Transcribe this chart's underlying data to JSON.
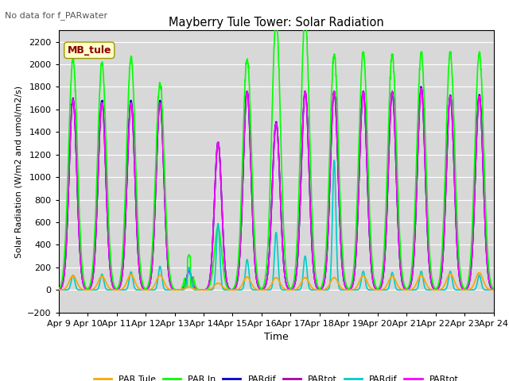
{
  "title": "Mayberry Tule Tower: Solar Radiation",
  "subtitle": "No data for f_PARwater",
  "xlabel": "Time",
  "ylabel": "Solar Radiation (W/m2 and umol/m2/s)",
  "ylim": [
    -200,
    2300
  ],
  "yticks": [
    -200,
    0,
    200,
    400,
    600,
    800,
    1000,
    1200,
    1400,
    1600,
    1800,
    2000,
    2200
  ],
  "x_labels": [
    "Apr 9",
    "Apr 10",
    "Apr 11",
    "Apr 12",
    "Apr 13",
    "Apr 14",
    "Apr 15",
    "Apr 16",
    "Apr 17",
    "Apr 18",
    "Apr 19",
    "Apr 20",
    "Apr 21",
    "Apr 22",
    "Apr 23",
    "Apr 24"
  ],
  "bg_color": "#d8d8d8",
  "legend_label": "MB_tule",
  "legend_bg": "#ffffcc",
  "legend_text_color": "#8b0000",
  "series": [
    {
      "label": "PAR Tule",
      "color": "#ffa500",
      "lw": 1.2
    },
    {
      "label": "PAR In",
      "color": "#00ff00",
      "lw": 1.2
    },
    {
      "label": "PARdif",
      "color": "#0000cc",
      "lw": 1.2
    },
    {
      "label": "PARtot",
      "color": "#aa00aa",
      "lw": 1.2
    },
    {
      "label": "PARdif",
      "color": "#00cccc",
      "lw": 1.2
    },
    {
      "label": "PARtot",
      "color": "#ff00ff",
      "lw": 1.2
    }
  ],
  "num_days": 15,
  "pts_per_day": 144,
  "green_peaks": [
    2060,
    2020,
    2070,
    1840,
    310,
    560,
    2050,
    2420,
    2430,
    2090,
    2110,
    2090,
    2110,
    2110,
    2110
  ],
  "orange_peaks": [
    125,
    120,
    135,
    130,
    25,
    60,
    115,
    110,
    110,
    110,
    125,
    120,
    130,
    145,
    150
  ],
  "cyan_peaks": [
    130,
    140,
    160,
    210,
    200,
    590,
    270,
    510,
    300,
    1150,
    165,
    155,
    165,
    165,
    130
  ],
  "magenta_peaks": [
    1690,
    1660,
    1660,
    1660,
    160,
    1310,
    1760,
    1480,
    1760,
    1760,
    1760,
    1760,
    1790,
    1720,
    1720
  ],
  "purple_peaks": [
    1690,
    1660,
    1660,
    1660,
    160,
    1310,
    1760,
    1480,
    1760,
    1760,
    1760,
    1760,
    1790,
    1720,
    1720
  ],
  "blue_peaks": [
    1700,
    1680,
    1680,
    1680,
    170,
    1310,
    1760,
    1490,
    1760,
    1760,
    1760,
    1760,
    1800,
    1730,
    1730
  ],
  "green_width": [
    0.42,
    0.42,
    0.42,
    0.42,
    0.3,
    0.35,
    0.42,
    0.42,
    0.42,
    0.42,
    0.42,
    0.42,
    0.42,
    0.42,
    0.42
  ],
  "magenta_width": [
    0.38,
    0.38,
    0.38,
    0.38,
    0.25,
    0.35,
    0.38,
    0.38,
    0.38,
    0.38,
    0.38,
    0.38,
    0.38,
    0.38,
    0.38
  ]
}
